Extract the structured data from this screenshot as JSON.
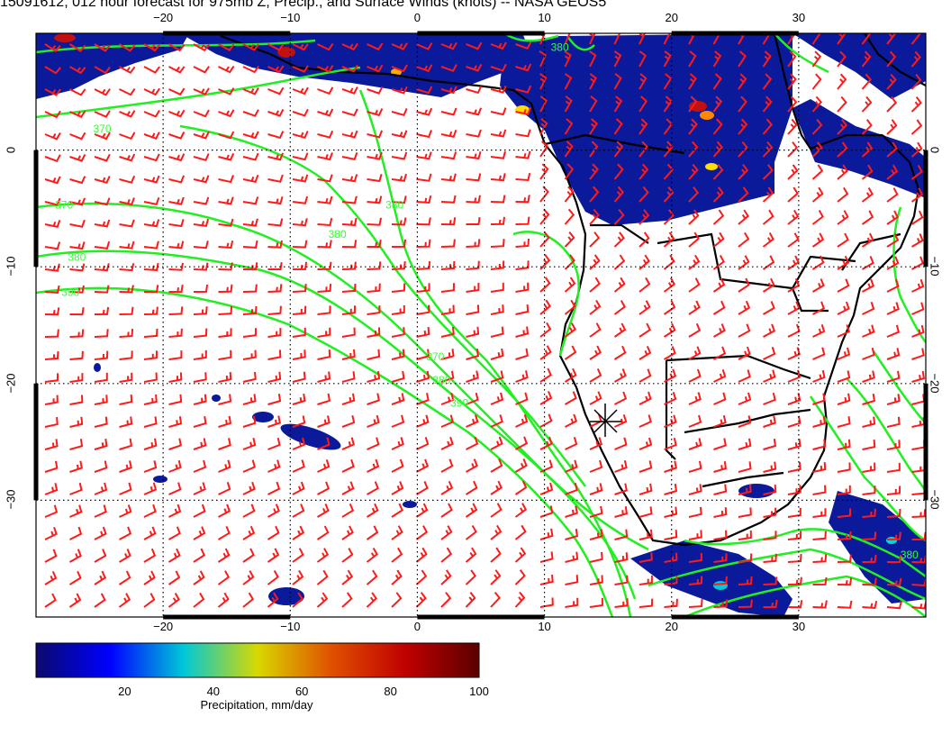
{
  "title": "15091612, 012 hour forecast for 975mb Z, Precip., and Surface Winds (knots) -- NASA GEOS5",
  "map": {
    "lon_range": [
      -30,
      40
    ],
    "lat_range": [
      -40,
      10
    ],
    "x_ticks": [
      {
        "value": -20,
        "label": "−20"
      },
      {
        "value": -10,
        "label": "−10"
      },
      {
        "value": 0,
        "label": "0"
      },
      {
        "value": 10,
        "label": "10"
      },
      {
        "value": 20,
        "label": "20"
      },
      {
        "value": 30,
        "label": "30"
      }
    ],
    "y_ticks": [
      {
        "value": 0,
        "label": "0"
      },
      {
        "value": -10,
        "label": "−10"
      },
      {
        "value": -20,
        "label": "−20"
      },
      {
        "value": -30,
        "label": "−30"
      }
    ],
    "contour_labels": [
      {
        "text": "370",
        "lon": -28.5,
        "lat": -5
      },
      {
        "text": "380",
        "lon": -27.5,
        "lat": -9.5
      },
      {
        "text": "390",
        "lon": -28,
        "lat": -12.5
      },
      {
        "text": "370",
        "lon": -25.5,
        "lat": 1.5
      },
      {
        "text": "380",
        "lon": -7,
        "lat": -7.5
      },
      {
        "text": "380",
        "lon": -2.5,
        "lat": -5
      },
      {
        "text": "370",
        "lon": 0.7,
        "lat": -18
      },
      {
        "text": "380",
        "lon": 1.2,
        "lat": -20
      },
      {
        "text": "390",
        "lon": 2.6,
        "lat": -22
      },
      {
        "text": "380",
        "lon": 10.5,
        "lat": 8.5
      },
      {
        "text": "380",
        "lon": 38,
        "lat": -35
      }
    ],
    "colors": {
      "contour": "#22ee22",
      "barbs": "#ff1a1a",
      "land": "#000000",
      "precip": "#0a1a9a"
    }
  },
  "colorbar": {
    "title": "Precipitation, mm/day",
    "ticks": [
      "20",
      "40",
      "60",
      "80",
      "100"
    ],
    "stops": [
      "#0a0a6e",
      "#0000ff",
      "#00c8d8",
      "#d8d800",
      "#e05000",
      "#c00000",
      "#5a0000"
    ]
  }
}
